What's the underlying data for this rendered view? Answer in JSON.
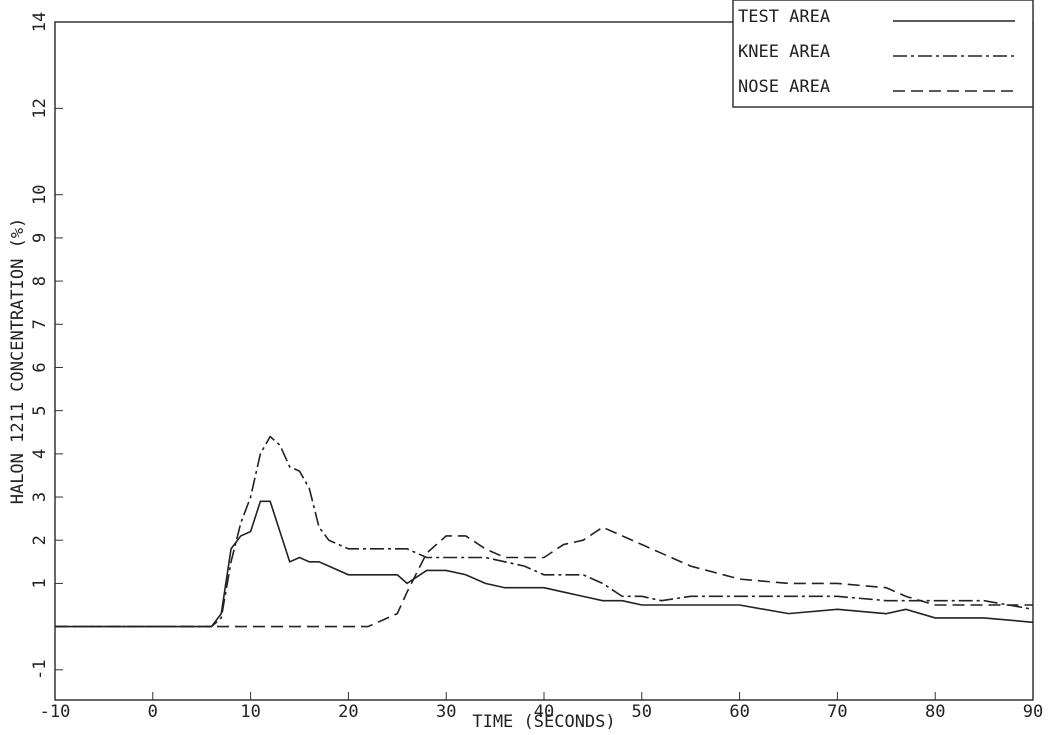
{
  "chart_data": {
    "type": "line",
    "x_label": "TIME (SECONDS)",
    "y_label": "HALON 1211 CONCENTRATION (%)",
    "xlim": [
      -10,
      90
    ],
    "xticks": [
      -10,
      0,
      10,
      20,
      30,
      40,
      50,
      60,
      70,
      80,
      90
    ],
    "ylim": [
      -1.7,
      14
    ],
    "yticks": [
      -1,
      1,
      2,
      3,
      4,
      5,
      6,
      7,
      8,
      9,
      10,
      12,
      14
    ],
    "legend": "top-right",
    "x": [
      -10,
      6,
      7,
      8,
      9,
      10,
      11,
      12,
      13,
      14,
      15,
      16,
      17,
      18,
      20,
      22,
      25,
      26,
      28,
      30,
      32,
      34,
      36,
      38,
      40,
      42,
      44,
      46,
      48,
      50,
      52,
      55,
      60,
      65,
      70,
      75,
      77,
      80,
      85,
      90
    ],
    "series": [
      {
        "name": "TEST AREA",
        "color": "#222222",
        "dash": "solid",
        "values": [
          0,
          0,
          0.3,
          1.8,
          2.1,
          2.2,
          2.9,
          2.9,
          2.2,
          1.5,
          1.6,
          1.5,
          1.5,
          1.4,
          1.2,
          1.2,
          1.2,
          1.0,
          1.3,
          1.3,
          1.2,
          1.0,
          0.9,
          0.9,
          0.9,
          0.8,
          0.7,
          0.6,
          0.6,
          0.5,
          0.5,
          0.5,
          0.5,
          0.3,
          0.4,
          0.3,
          0.4,
          0.2,
          0.2,
          0.1
        ]
      },
      {
        "name": "KNEE AREA",
        "color": "#222222",
        "dash": "dashdot",
        "values": [
          0,
          0,
          0.2,
          1.5,
          2.4,
          3.0,
          4.0,
          4.4,
          4.2,
          3.7,
          3.6,
          3.2,
          2.3,
          2.0,
          1.8,
          1.8,
          1.8,
          1.8,
          1.6,
          1.6,
          1.6,
          1.6,
          1.5,
          1.4,
          1.2,
          1.2,
          1.2,
          1.0,
          0.7,
          0.7,
          0.6,
          0.7,
          0.7,
          0.7,
          0.7,
          0.6,
          0.6,
          0.6,
          0.6,
          0.4
        ]
      },
      {
        "name": "NOSE AREA",
        "color": "#222222",
        "dash": "dashed",
        "values": [
          0,
          0,
          0,
          0,
          0,
          0,
          0,
          0,
          0,
          0,
          0,
          0,
          0,
          0,
          0,
          0,
          0.3,
          0.8,
          1.7,
          2.1,
          2.1,
          1.8,
          1.6,
          1.6,
          1.6,
          1.9,
          2.0,
          2.3,
          2.1,
          1.9,
          1.7,
          1.4,
          1.1,
          1.0,
          1.0,
          0.9,
          0.7,
          0.5,
          0.5,
          0.5
        ]
      }
    ]
  }
}
